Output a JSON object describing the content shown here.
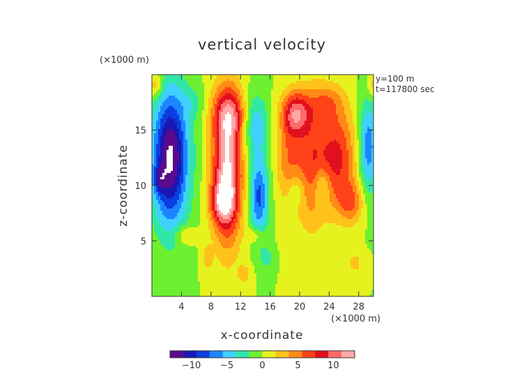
{
  "chart_data": {
    "type": "heatmap",
    "title": "vertical velocity",
    "xlabel": "x-coordinate",
    "ylabel": "z-coordinate",
    "x_unit": "(×1000 m)",
    "y_unit": "(×1000 m)",
    "annotations": [
      "y=100 m",
      "t=117800 sec"
    ],
    "xlim": [
      0,
      30
    ],
    "ylim": [
      0,
      20
    ],
    "x_ticks": [
      4,
      8,
      12,
      16,
      20,
      24,
      28
    ],
    "y_ticks": [
      5,
      10,
      15
    ],
    "colorbar": {
      "range": [
        -13,
        13
      ],
      "ticks": [
        -10,
        -5,
        0,
        5,
        10
      ],
      "colors": [
        "#5a0a8c",
        "#1b16b4",
        "#0a3ee0",
        "#1b86ff",
        "#3fd0ff",
        "#30e6a8",
        "#6cf030",
        "#e6f21e",
        "#ffc21a",
        "#ff8a16",
        "#ff4218",
        "#e0101e",
        "#ff6a6a",
        "#ffaaaa"
      ]
    },
    "grid": false,
    "field_blobs": [
      {
        "x": 10.2,
        "z": 11.5,
        "sx": 1.4,
        "sz": 4.5,
        "v": 13.5
      },
      {
        "x": 10.5,
        "z": 16.5,
        "sx": 1.6,
        "sz": 1.6,
        "v": 6
      },
      {
        "x": 9.5,
        "z": 8.5,
        "sx": 1.1,
        "sz": 1.3,
        "v": 7
      },
      {
        "x": 19.5,
        "z": 16.5,
        "sx": 1.3,
        "sz": 1.4,
        "v": 9
      },
      {
        "x": 18.5,
        "z": 12.5,
        "sx": 1.2,
        "sz": 3.0,
        "v": 5
      },
      {
        "x": 21.5,
        "z": 12.0,
        "sx": 1.4,
        "sz": 4.0,
        "v": 6
      },
      {
        "x": 25.0,
        "z": 12.5,
        "sx": 1.8,
        "sz": 3.2,
        "v": 8
      },
      {
        "x": 27.0,
        "z": 8.5,
        "sx": 1.2,
        "sz": 1.3,
        "v": 5
      },
      {
        "x": 23.5,
        "z": 17.5,
        "sx": 1.6,
        "sz": 1.2,
        "v": 4
      },
      {
        "x": 2.5,
        "z": 12.5,
        "sx": 1.7,
        "sz": 4.2,
        "v": -13.5
      },
      {
        "x": 1.0,
        "z": 10.5,
        "sx": 0.6,
        "sz": 0.9,
        "v": -4
      },
      {
        "x": 14.5,
        "z": 9.0,
        "sx": 0.9,
        "sz": 2.5,
        "v": -8
      },
      {
        "x": 14.0,
        "z": 15.5,
        "sx": 1.2,
        "sz": 2.0,
        "v": -5
      },
      {
        "x": 29.3,
        "z": 13.5,
        "sx": 0.9,
        "sz": 3.0,
        "v": -7
      },
      {
        "x": 23.0,
        "z": 10.0,
        "sx": 0.8,
        "sz": 1.2,
        "v": -4
      },
      {
        "x": 19.5,
        "z": 9.5,
        "sx": 0.9,
        "sz": 1.0,
        "v": -3
      },
      {
        "x": 5.5,
        "z": 17.5,
        "sx": 1.1,
        "sz": 1.0,
        "v": -2
      },
      {
        "x": 15.5,
        "z": 3.5,
        "sx": 0.6,
        "sz": 0.6,
        "v": -3
      },
      {
        "x": 0.5,
        "z": 19.0,
        "sx": 0.7,
        "sz": 0.8,
        "v": 4
      },
      {
        "x": 29.8,
        "z": 19.0,
        "sx": 0.5,
        "sz": 0.8,
        "v": 3
      },
      {
        "x": 4.5,
        "z": 5.5,
        "sx": 1.0,
        "sz": 0.6,
        "v": 3
      },
      {
        "x": 7.5,
        "z": 3.5,
        "sx": 0.5,
        "sz": 0.8,
        "v": 3
      },
      {
        "x": 12.5,
        "z": 2.0,
        "sx": 0.6,
        "sz": 0.6,
        "v": 3
      },
      {
        "x": 14.0,
        "z": 5.5,
        "sx": 0.8,
        "sz": 0.5,
        "v": 3
      },
      {
        "x": 27.5,
        "z": 3.0,
        "sx": 0.8,
        "sz": 0.8,
        "v": 2.5
      }
    ]
  }
}
